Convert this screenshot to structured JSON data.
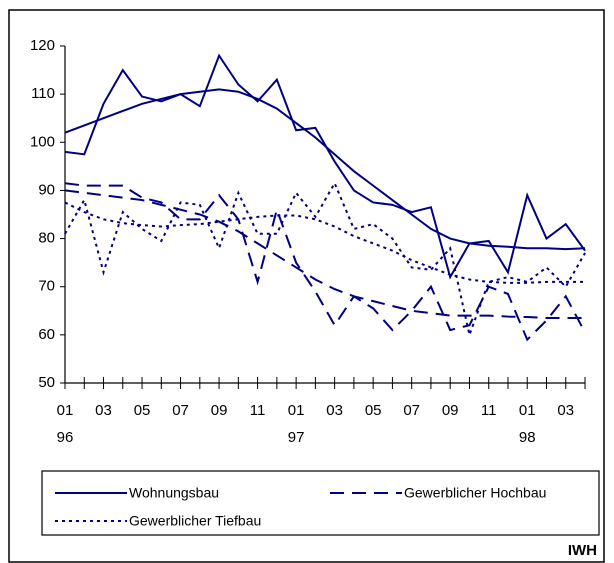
{
  "chart_data": {
    "type": "line",
    "categories": [
      "01",
      null,
      "03",
      null,
      "05",
      null,
      "07",
      null,
      "09",
      null,
      "11",
      null,
      "01",
      null,
      "03",
      null,
      "05",
      null,
      "07",
      null,
      "09",
      null,
      "11",
      null,
      "01",
      null,
      "03",
      null
    ],
    "category_years": [
      "96",
      null,
      null,
      null,
      null,
      null,
      null,
      null,
      null,
      null,
      null,
      null,
      "97",
      null,
      null,
      null,
      null,
      null,
      null,
      null,
      null,
      null,
      null,
      null,
      "98",
      null,
      null,
      null
    ],
    "ylim": [
      50,
      120
    ],
    "yticks": [
      50,
      60,
      70,
      80,
      90,
      100,
      110,
      120
    ],
    "series": [
      {
        "name": "Wohnungsbau",
        "color": "#000080",
        "dash": "solid",
        "values": [
          98,
          97.5,
          108,
          115,
          109.5,
          108.5,
          110,
          107.5,
          118,
          112,
          108.5,
          113,
          102.5,
          103,
          96,
          90,
          87.5,
          87,
          85.5,
          86.5,
          72,
          79,
          79.5,
          73,
          89,
          80,
          83,
          77.5
        ],
        "trend": [
          102,
          103.5,
          105,
          106.5,
          108,
          109,
          110,
          110.5,
          111,
          110.5,
          109,
          107,
          104,
          101,
          97.5,
          94,
          91,
          88,
          85,
          82,
          80,
          79,
          78.5,
          78.3,
          78,
          78,
          77.8,
          78
        ]
      },
      {
        "name": "Gewerblicher Hochbau",
        "color": "#000080",
        "dash": "dashed",
        "values": [
          91.5,
          91,
          91,
          91,
          88.5,
          87.5,
          84,
          84,
          89,
          84,
          71,
          86,
          75,
          69,
          62,
          68,
          65.5,
          61,
          65,
          70,
          61,
          62,
          70,
          68.5,
          59,
          63,
          68,
          60.5
        ],
        "trend": [
          90,
          89.5,
          89,
          88.5,
          88,
          87,
          86,
          85,
          83.5,
          81.5,
          79,
          76.5,
          74,
          71.5,
          69.5,
          68,
          67,
          66,
          65,
          64.5,
          64,
          64,
          64,
          63.8,
          63.7,
          63.5,
          63.5,
          63.5
        ]
      },
      {
        "name": "Gewerblicher Tiefbau",
        "color": "#000080",
        "dash": "dotted",
        "values": [
          81,
          88,
          73,
          85.5,
          82,
          79.5,
          87.5,
          87,
          78,
          89.5,
          81,
          81,
          89.5,
          84.5,
          91.5,
          82,
          83,
          80,
          74,
          73.5,
          78,
          60,
          71,
          72,
          71,
          74,
          70,
          77
        ],
        "trend": [
          87.5,
          85.5,
          84,
          83.2,
          82.8,
          82.5,
          82.8,
          83,
          83.5,
          84,
          84.5,
          84.8,
          84.8,
          84,
          82.5,
          80.5,
          79,
          77.5,
          75.5,
          74,
          72.5,
          71.5,
          71,
          70.8,
          70.8,
          71,
          71,
          71
        ]
      }
    ],
    "source": "IWH"
  }
}
